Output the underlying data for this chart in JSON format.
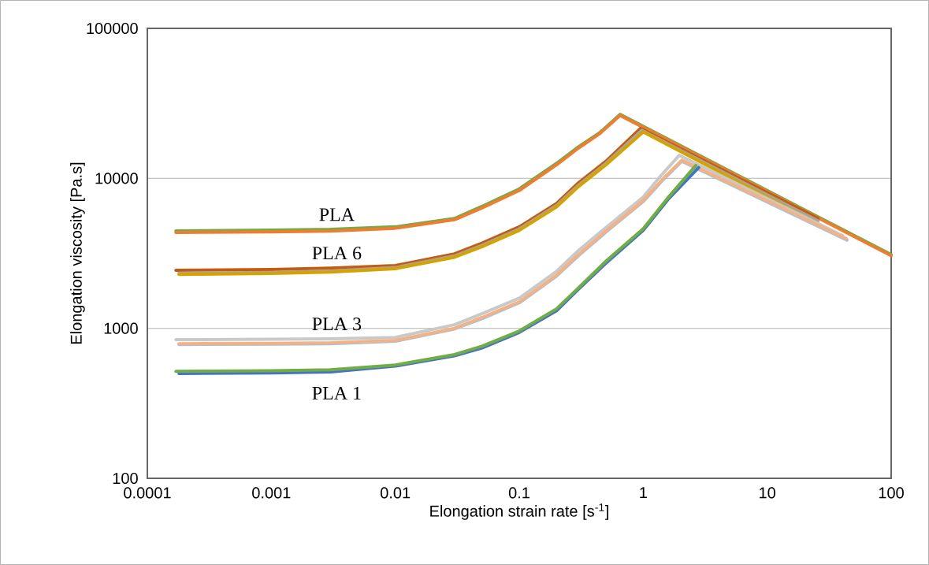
{
  "chart_data": {
    "type": "line",
    "xlabel": "Elongation strain rate [s$^{-1}$]",
    "ylabel": "Elongation viscosity [Pa.s]",
    "log": "xy",
    "grid": "y",
    "marker": "none",
    "line_style": "solid",
    "xlim": [
      0.0001,
      100
    ],
    "ylim": [
      100,
      100000
    ],
    "xticks": [
      0.0001,
      0.001,
      0.01,
      0.1,
      1,
      10,
      100
    ],
    "yticks": [
      100,
      1000,
      10000,
      100000
    ],
    "series": [
      {
        "name": "PLA",
        "color": "#70ad47",
        "x": [
          0.00017,
          0.001,
          0.003,
          0.01,
          0.03,
          0.05,
          0.1,
          0.2,
          0.3,
          0.45,
          0.65,
          100
        ],
        "values": [
          4470,
          4520,
          4570,
          4750,
          5400,
          6500,
          8500,
          12600,
          16200,
          20300,
          26700,
          3100
        ]
      },
      {
        "color": "#ed7d31",
        "x": [
          0.00017,
          0.001,
          0.003,
          0.01,
          0.03,
          0.05,
          0.1,
          0.2,
          0.3,
          0.45,
          0.65,
          100
        ],
        "values": [
          4360,
          4400,
          4450,
          4650,
          5300,
          6350,
          8300,
          12300,
          15900,
          20000,
          26300,
          3050
        ]
      },
      {
        "name": "PLA 6",
        "color": "#c55a11",
        "x": [
          0.00017,
          0.001,
          0.003,
          0.01,
          0.03,
          0.05,
          0.1,
          0.2,
          0.3,
          0.5,
          0.95,
          25.7
        ],
        "values": [
          2440,
          2470,
          2520,
          2620,
          3140,
          3700,
          4750,
          6800,
          9340,
          13000,
          21500,
          5400
        ]
      },
      {
        "color": "#a5a5a5",
        "x": [
          0.00018,
          0.001,
          0.003,
          0.01,
          0.03,
          0.05,
          0.1,
          0.2,
          0.3,
          0.5,
          0.97,
          25.7
        ],
        "values": [
          2330,
          2360,
          2410,
          2540,
          3040,
          3580,
          4600,
          6600,
          9000,
          12600,
          20900,
          5200
        ]
      },
      {
        "color": "#d4a300",
        "x": [
          0.00018,
          0.001,
          0.003,
          0.01,
          0.03,
          0.05,
          0.1,
          0.2,
          0.3,
          0.5,
          1.0,
          25.7
        ],
        "values": [
          2290,
          2320,
          2370,
          2500,
          2980,
          3500,
          4500,
          6450,
          8800,
          12300,
          20400,
          5000
        ]
      },
      {
        "name": "PLA 3",
        "color": "#c9c9c9",
        "x": [
          0.00017,
          0.001,
          0.003,
          0.01,
          0.03,
          0.05,
          0.1,
          0.2,
          0.3,
          0.5,
          1,
          1.4,
          1.95,
          40.5
        ],
        "values": [
          840,
          845,
          850,
          870,
          1057,
          1250,
          1590,
          2400,
          3300,
          4700,
          7500,
          10500,
          14250,
          4150
        ]
      },
      {
        "color": "#9dc3e6",
        "x": [
          0.00018,
          0.001,
          0.003,
          0.01,
          0.03,
          0.05,
          0.1,
          0.2,
          0.3,
          0.5,
          1,
          1.45,
          2.05,
          44
        ],
        "values": [
          780,
          785,
          790,
          820,
          990,
          1160,
          1480,
          2230,
          3050,
          4380,
          7000,
          9800,
          13000,
          3880
        ]
      },
      {
        "color": "#f4b183",
        "x": [
          0.00018,
          0.001,
          0.003,
          0.01,
          0.03,
          0.05,
          0.1,
          0.2,
          0.3,
          0.5,
          1,
          1.45,
          2.05,
          43.5
        ],
        "values": [
          790,
          795,
          800,
          830,
          1000,
          1180,
          1500,
          2260,
          3100,
          4450,
          7100,
          9950,
          13200,
          3960
        ]
      },
      {
        "name": "PLA 1",
        "color": "#4472c4",
        "x": [
          0.00018,
          0.001,
          0.003,
          0.01,
          0.03,
          0.05,
          0.1,
          0.2,
          0.3,
          0.5,
          1,
          1.6,
          2.8
        ],
        "values": [
          500,
          505,
          512,
          560,
          655,
          740,
          940,
          1310,
          1820,
          2720,
          4500,
          7300,
          11800
        ]
      },
      {
        "color": "#70ad47",
        "x": [
          0.00017,
          0.001,
          0.003,
          0.01,
          0.03,
          0.05,
          0.1,
          0.2,
          0.3,
          0.5,
          1,
          1.6,
          2.66
        ],
        "values": [
          517,
          522,
          530,
          570,
          668,
          760,
          960,
          1350,
          1860,
          2800,
          4620,
          7500,
          12200
        ]
      }
    ]
  }
}
